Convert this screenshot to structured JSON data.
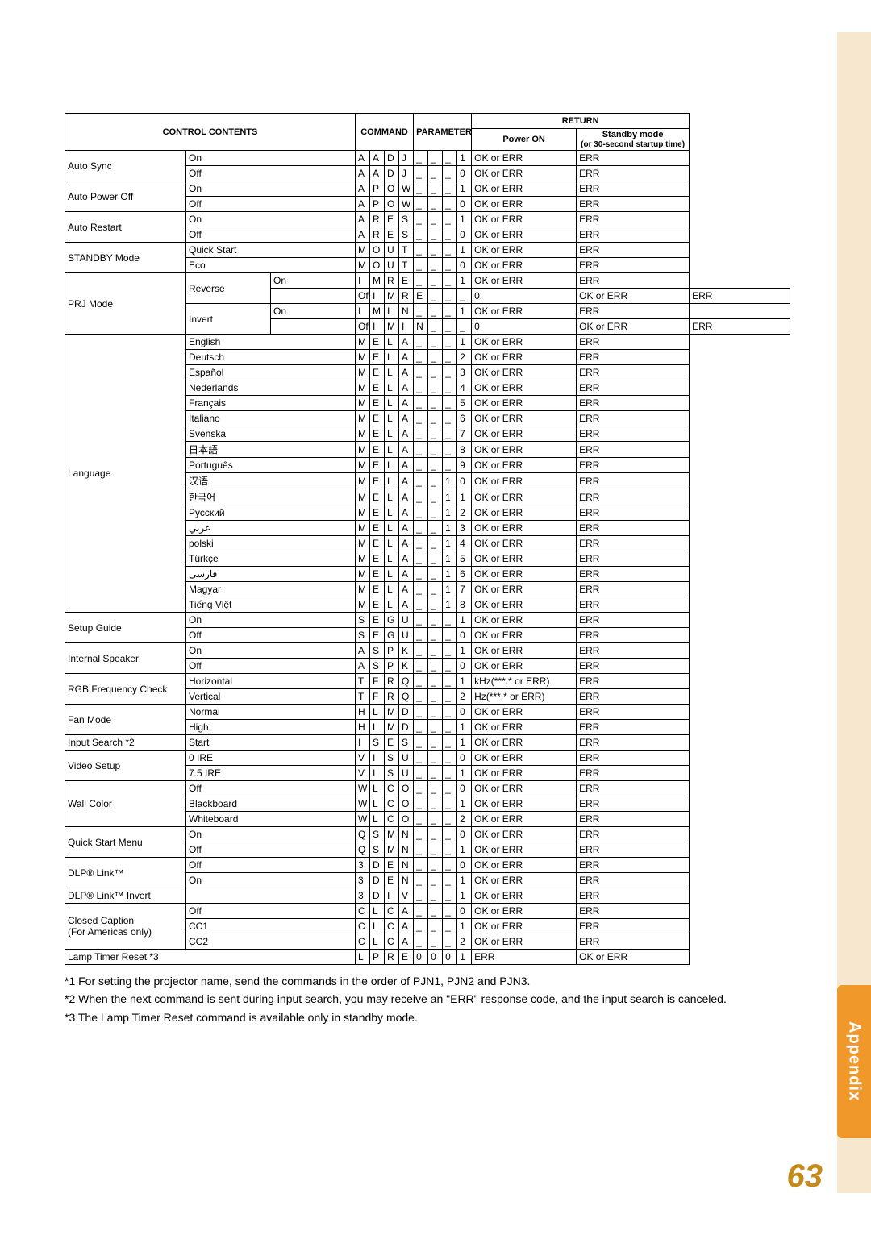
{
  "headers": {
    "control_contents": "CONTROL CONTENTS",
    "command": "COMMAND",
    "parameter": "PARAMETER",
    "return": "RETURN",
    "power_on": "Power ON",
    "standby": "Standby mode",
    "standby_sub": "(or 30-second startup time)"
  },
  "rows": [
    {
      "cc": [
        "Auto Sync",
        "On",
        ""
      ],
      "cmd": [
        "A",
        "A",
        "D",
        "J"
      ],
      "par": [
        "_",
        "_",
        "_",
        "1"
      ],
      "pw": "OK or ERR",
      "sb": "ERR",
      "f": [
        2,
        1,
        0
      ]
    },
    {
      "cc": [
        "",
        "Off",
        ""
      ],
      "cmd": [
        "A",
        "A",
        "D",
        "J"
      ],
      "par": [
        "_",
        "_",
        "_",
        "0"
      ],
      "pw": "OK or ERR",
      "sb": "ERR"
    },
    {
      "cc": [
        "Auto Power Off",
        "On",
        ""
      ],
      "cmd": [
        "A",
        "P",
        "O",
        "W"
      ],
      "par": [
        "_",
        "_",
        "_",
        "1"
      ],
      "pw": "OK or ERR",
      "sb": "ERR",
      "f": [
        2,
        1,
        0
      ]
    },
    {
      "cc": [
        "",
        "Off",
        ""
      ],
      "cmd": [
        "A",
        "P",
        "O",
        "W"
      ],
      "par": [
        "_",
        "_",
        "_",
        "0"
      ],
      "pw": "OK or ERR",
      "sb": "ERR"
    },
    {
      "cc": [
        "Auto Restart",
        "On",
        ""
      ],
      "cmd": [
        "A",
        "R",
        "E",
        "S"
      ],
      "par": [
        "_",
        "_",
        "_",
        "1"
      ],
      "pw": "OK or ERR",
      "sb": "ERR",
      "f": [
        2,
        1,
        0
      ]
    },
    {
      "cc": [
        "",
        "Off",
        ""
      ],
      "cmd": [
        "A",
        "R",
        "E",
        "S"
      ],
      "par": [
        "_",
        "_",
        "_",
        "0"
      ],
      "pw": "OK or ERR",
      "sb": "ERR"
    },
    {
      "cc": [
        "STANDBY Mode",
        "Quick Start",
        ""
      ],
      "cmd": [
        "M",
        "O",
        "U",
        "T"
      ],
      "par": [
        "_",
        "_",
        "_",
        "1"
      ],
      "pw": "OK or ERR",
      "sb": "ERR",
      "f": [
        2,
        1,
        0
      ]
    },
    {
      "cc": [
        "",
        "Eco",
        ""
      ],
      "cmd": [
        "M",
        "O",
        "U",
        "T"
      ],
      "par": [
        "_",
        "_",
        "_",
        "0"
      ],
      "pw": "OK or ERR",
      "sb": "ERR"
    },
    {
      "cc": [
        "PRJ Mode",
        "Reverse",
        "On"
      ],
      "cmd": [
        "I",
        "M",
        "R",
        "E"
      ],
      "par": [
        "_",
        "_",
        "_",
        "1"
      ],
      "pw": "OK or ERR",
      "sb": "ERR",
      "f": [
        4,
        2,
        1
      ]
    },
    {
      "cc": [
        "",
        "",
        "Off"
      ],
      "cmd": [
        "I",
        "M",
        "R",
        "E"
      ],
      "par": [
        "_",
        "_",
        "_",
        "0"
      ],
      "pw": "OK or ERR",
      "sb": "ERR"
    },
    {
      "cc": [
        "",
        "Invert",
        "On"
      ],
      "cmd": [
        "I",
        "M",
        "I",
        "N"
      ],
      "par": [
        "_",
        "_",
        "_",
        "1"
      ],
      "pw": "OK or ERR",
      "sb": "ERR",
      "f": [
        0,
        2,
        1
      ]
    },
    {
      "cc": [
        "",
        "",
        "Off"
      ],
      "cmd": [
        "I",
        "M",
        "I",
        "N"
      ],
      "par": [
        "_",
        "_",
        "_",
        "0"
      ],
      "pw": "OK or ERR",
      "sb": "ERR"
    },
    {
      "cc": [
        "Language",
        "English",
        ""
      ],
      "cmd": [
        "M",
        "E",
        "L",
        "A"
      ],
      "par": [
        "_",
        "_",
        "_",
        "1"
      ],
      "pw": "OK or ERR",
      "sb": "ERR",
      "f": [
        18,
        1,
        0
      ]
    },
    {
      "cc": [
        "",
        "Deutsch",
        ""
      ],
      "cmd": [
        "M",
        "E",
        "L",
        "A"
      ],
      "par": [
        "_",
        "_",
        "_",
        "2"
      ],
      "pw": "OK or ERR",
      "sb": "ERR"
    },
    {
      "cc": [
        "",
        "Español",
        ""
      ],
      "cmd": [
        "M",
        "E",
        "L",
        "A"
      ],
      "par": [
        "_",
        "_",
        "_",
        "3"
      ],
      "pw": "OK or ERR",
      "sb": "ERR"
    },
    {
      "cc": [
        "",
        "Nederlands",
        ""
      ],
      "cmd": [
        "M",
        "E",
        "L",
        "A"
      ],
      "par": [
        "_",
        "_",
        "_",
        "4"
      ],
      "pw": "OK or ERR",
      "sb": "ERR"
    },
    {
      "cc": [
        "",
        "Français",
        ""
      ],
      "cmd": [
        "M",
        "E",
        "L",
        "A"
      ],
      "par": [
        "_",
        "_",
        "_",
        "5"
      ],
      "pw": "OK or ERR",
      "sb": "ERR"
    },
    {
      "cc": [
        "",
        "Italiano",
        ""
      ],
      "cmd": [
        "M",
        "E",
        "L",
        "A"
      ],
      "par": [
        "_",
        "_",
        "_",
        "6"
      ],
      "pw": "OK or ERR",
      "sb": "ERR"
    },
    {
      "cc": [
        "",
        "Svenska",
        ""
      ],
      "cmd": [
        "M",
        "E",
        "L",
        "A"
      ],
      "par": [
        "_",
        "_",
        "_",
        "7"
      ],
      "pw": "OK or ERR",
      "sb": "ERR"
    },
    {
      "cc": [
        "",
        "日本語",
        ""
      ],
      "cmd": [
        "M",
        "E",
        "L",
        "A"
      ],
      "par": [
        "_",
        "_",
        "_",
        "8"
      ],
      "pw": "OK or ERR",
      "sb": "ERR"
    },
    {
      "cc": [
        "",
        "Português",
        ""
      ],
      "cmd": [
        "M",
        "E",
        "L",
        "A"
      ],
      "par": [
        "_",
        "_",
        "_",
        "9"
      ],
      "pw": "OK or ERR",
      "sb": "ERR"
    },
    {
      "cc": [
        "",
        "汉语",
        ""
      ],
      "cmd": [
        "M",
        "E",
        "L",
        "A"
      ],
      "par": [
        "_",
        "_",
        "1",
        "0"
      ],
      "pw": "OK or ERR",
      "sb": "ERR"
    },
    {
      "cc": [
        "",
        "한국어",
        ""
      ],
      "cmd": [
        "M",
        "E",
        "L",
        "A"
      ],
      "par": [
        "_",
        "_",
        "1",
        "1"
      ],
      "pw": "OK or ERR",
      "sb": "ERR"
    },
    {
      "cc": [
        "",
        "Русский",
        ""
      ],
      "cmd": [
        "M",
        "E",
        "L",
        "A"
      ],
      "par": [
        "_",
        "_",
        "1",
        "2"
      ],
      "pw": "OK or ERR",
      "sb": "ERR"
    },
    {
      "cc": [
        "",
        "عربي",
        ""
      ],
      "cmd": [
        "M",
        "E",
        "L",
        "A"
      ],
      "par": [
        "_",
        "_",
        "1",
        "3"
      ],
      "pw": "OK or ERR",
      "sb": "ERR"
    },
    {
      "cc": [
        "",
        "polski",
        ""
      ],
      "cmd": [
        "M",
        "E",
        "L",
        "A"
      ],
      "par": [
        "_",
        "_",
        "1",
        "4"
      ],
      "pw": "OK or ERR",
      "sb": "ERR"
    },
    {
      "cc": [
        "",
        "Türkçe",
        ""
      ],
      "cmd": [
        "M",
        "E",
        "L",
        "A"
      ],
      "par": [
        "_",
        "_",
        "1",
        "5"
      ],
      "pw": "OK or ERR",
      "sb": "ERR"
    },
    {
      "cc": [
        "",
        "فارسی",
        ""
      ],
      "cmd": [
        "M",
        "E",
        "L",
        "A"
      ],
      "par": [
        "_",
        "_",
        "1",
        "6"
      ],
      "pw": "OK or ERR",
      "sb": "ERR"
    },
    {
      "cc": [
        "",
        "Magyar",
        ""
      ],
      "cmd": [
        "M",
        "E",
        "L",
        "A"
      ],
      "par": [
        "_",
        "_",
        "1",
        "7"
      ],
      "pw": "OK or ERR",
      "sb": "ERR"
    },
    {
      "cc": [
        "",
        "Tiếng Việt",
        ""
      ],
      "cmd": [
        "M",
        "E",
        "L",
        "A"
      ],
      "par": [
        "_",
        "_",
        "1",
        "8"
      ],
      "pw": "OK or ERR",
      "sb": "ERR"
    },
    {
      "cc": [
        "Setup Guide",
        "On",
        ""
      ],
      "cmd": [
        "S",
        "E",
        "G",
        "U"
      ],
      "par": [
        "_",
        "_",
        "_",
        "1"
      ],
      "pw": "OK or ERR",
      "sb": "ERR",
      "f": [
        2,
        1,
        0
      ]
    },
    {
      "cc": [
        "",
        "Off",
        ""
      ],
      "cmd": [
        "S",
        "E",
        "G",
        "U"
      ],
      "par": [
        "_",
        "_",
        "_",
        "0"
      ],
      "pw": "OK or ERR",
      "sb": "ERR"
    },
    {
      "cc": [
        "Internal Speaker",
        "On",
        ""
      ],
      "cmd": [
        "A",
        "S",
        "P",
        "K"
      ],
      "par": [
        "_",
        "_",
        "_",
        "1"
      ],
      "pw": "OK or ERR",
      "sb": "ERR",
      "f": [
        2,
        1,
        0
      ]
    },
    {
      "cc": [
        "",
        "Off",
        ""
      ],
      "cmd": [
        "A",
        "S",
        "P",
        "K"
      ],
      "par": [
        "_",
        "_",
        "_",
        "0"
      ],
      "pw": "OK or ERR",
      "sb": "ERR"
    },
    {
      "cc": [
        "RGB Frequency Check",
        "Horizontal",
        ""
      ],
      "cmd": [
        "T",
        "F",
        "R",
        "Q"
      ],
      "par": [
        "_",
        "_",
        "_",
        "1"
      ],
      "pw": "kHz(***.* or ERR)",
      "sb": "ERR",
      "f": [
        2,
        1,
        0
      ]
    },
    {
      "cc": [
        "",
        "Vertical",
        ""
      ],
      "cmd": [
        "T",
        "F",
        "R",
        "Q"
      ],
      "par": [
        "_",
        "_",
        "_",
        "2"
      ],
      "pw": "Hz(***.* or ERR)",
      "sb": "ERR"
    },
    {
      "cc": [
        "Fan Mode",
        "Normal",
        ""
      ],
      "cmd": [
        "H",
        "L",
        "M",
        "D"
      ],
      "par": [
        "_",
        "_",
        "_",
        "0"
      ],
      "pw": "OK or ERR",
      "sb": "ERR",
      "f": [
        2,
        1,
        0
      ]
    },
    {
      "cc": [
        "",
        "High",
        ""
      ],
      "cmd": [
        "H",
        "L",
        "M",
        "D"
      ],
      "par": [
        "_",
        "_",
        "_",
        "1"
      ],
      "pw": "OK or ERR",
      "sb": "ERR"
    },
    {
      "cc": [
        "Input Search *2",
        "Start",
        ""
      ],
      "cmd": [
        "I",
        "S",
        "E",
        "S"
      ],
      "par": [
        "_",
        "_",
        "_",
        "1"
      ],
      "pw": "OK or ERR",
      "sb": "ERR",
      "f": [
        1,
        1,
        0
      ]
    },
    {
      "cc": [
        "Video Setup",
        "0 IRE",
        ""
      ],
      "cmd": [
        "V",
        "I",
        "S",
        "U"
      ],
      "par": [
        "_",
        "_",
        "_",
        "0"
      ],
      "pw": "OK or ERR",
      "sb": "ERR",
      "f": [
        2,
        1,
        0
      ]
    },
    {
      "cc": [
        "",
        "7.5 IRE",
        ""
      ],
      "cmd": [
        "V",
        "I",
        "S",
        "U"
      ],
      "par": [
        "_",
        "_",
        "_",
        "1"
      ],
      "pw": "OK or ERR",
      "sb": "ERR"
    },
    {
      "cc": [
        "Wall Color",
        "Off",
        ""
      ],
      "cmd": [
        "W",
        "L",
        "C",
        "O"
      ],
      "par": [
        "_",
        "_",
        "_",
        "0"
      ],
      "pw": "OK or ERR",
      "sb": "ERR",
      "f": [
        3,
        1,
        0
      ]
    },
    {
      "cc": [
        "",
        "Blackboard",
        ""
      ],
      "cmd": [
        "W",
        "L",
        "C",
        "O"
      ],
      "par": [
        "_",
        "_",
        "_",
        "1"
      ],
      "pw": "OK or ERR",
      "sb": "ERR"
    },
    {
      "cc": [
        "",
        "Whiteboard",
        ""
      ],
      "cmd": [
        "W",
        "L",
        "C",
        "O"
      ],
      "par": [
        "_",
        "_",
        "_",
        "2"
      ],
      "pw": "OK or ERR",
      "sb": "ERR"
    },
    {
      "cc": [
        "Quick Start Menu",
        "On",
        ""
      ],
      "cmd": [
        "Q",
        "S",
        "M",
        "N"
      ],
      "par": [
        "_",
        "_",
        "_",
        "0"
      ],
      "pw": "OK or ERR",
      "sb": "ERR",
      "f": [
        2,
        1,
        0
      ]
    },
    {
      "cc": [
        "",
        "Off",
        ""
      ],
      "cmd": [
        "Q",
        "S",
        "M",
        "N"
      ],
      "par": [
        "_",
        "_",
        "_",
        "1"
      ],
      "pw": "OK or ERR",
      "sb": "ERR"
    },
    {
      "cc": [
        "DLP® Link™",
        "Off",
        ""
      ],
      "cmd": [
        "3",
        "D",
        "E",
        "N"
      ],
      "par": [
        "_",
        "_",
        "_",
        "0"
      ],
      "pw": "OK or ERR",
      "sb": "ERR",
      "f": [
        2,
        1,
        0
      ]
    },
    {
      "cc": [
        "",
        "On",
        ""
      ],
      "cmd": [
        "3",
        "D",
        "E",
        "N"
      ],
      "par": [
        "_",
        "_",
        "_",
        "1"
      ],
      "pw": "OK or ERR",
      "sb": "ERR"
    },
    {
      "cc": [
        "DLP® Link™ Invert",
        "",
        ""
      ],
      "cmd": [
        "3",
        "D",
        "I",
        "V"
      ],
      "par": [
        "_",
        "_",
        "_",
        "1"
      ],
      "pw": "OK or ERR",
      "sb": "ERR",
      "f": [
        1,
        1,
        0
      ]
    },
    {
      "cc": [
        "Closed Caption",
        "Off",
        ""
      ],
      "cmd": [
        "C",
        "L",
        "C",
        "A"
      ],
      "par": [
        "_",
        "_",
        "_",
        "0"
      ],
      "pw": "OK or ERR",
      "sb": "ERR",
      "f": [
        1,
        1,
        0
      ],
      "cc1extra": "(For Americas only)",
      "cc1extraSpan": 2
    },
    {
      "cc": [
        "",
        "CC1",
        ""
      ],
      "cmd": [
        "C",
        "L",
        "C",
        "A"
      ],
      "par": [
        "_",
        "_",
        "_",
        "1"
      ],
      "pw": "OK or ERR",
      "sb": "ERR"
    },
    {
      "cc": [
        "",
        "CC2",
        ""
      ],
      "cmd": [
        "C",
        "L",
        "C",
        "A"
      ],
      "par": [
        "_",
        "_",
        "_",
        "2"
      ],
      "pw": "OK or ERR",
      "sb": "ERR"
    },
    {
      "cc": [
        "Lamp Timer Reset *3",
        "",
        ""
      ],
      "cmd": [
        "L",
        "P",
        "R",
        "E"
      ],
      "par": [
        "0",
        "0",
        "0",
        "1"
      ],
      "pw": "ERR",
      "sb": "OK or ERR",
      "f": [
        1,
        1,
        0
      ],
      "full": true
    }
  ],
  "footnotes": [
    "*1  For setting the projector name, send the commands in the order of PJN1, PJN2 and PJN3.",
    "*2  When the next command is sent during input search, you may receive an \"ERR\" response code, and the input search is canceled.",
    "*3  The Lamp Timer Reset command is available only in standby mode."
  ],
  "tab": "Appendix",
  "page_number": "63"
}
